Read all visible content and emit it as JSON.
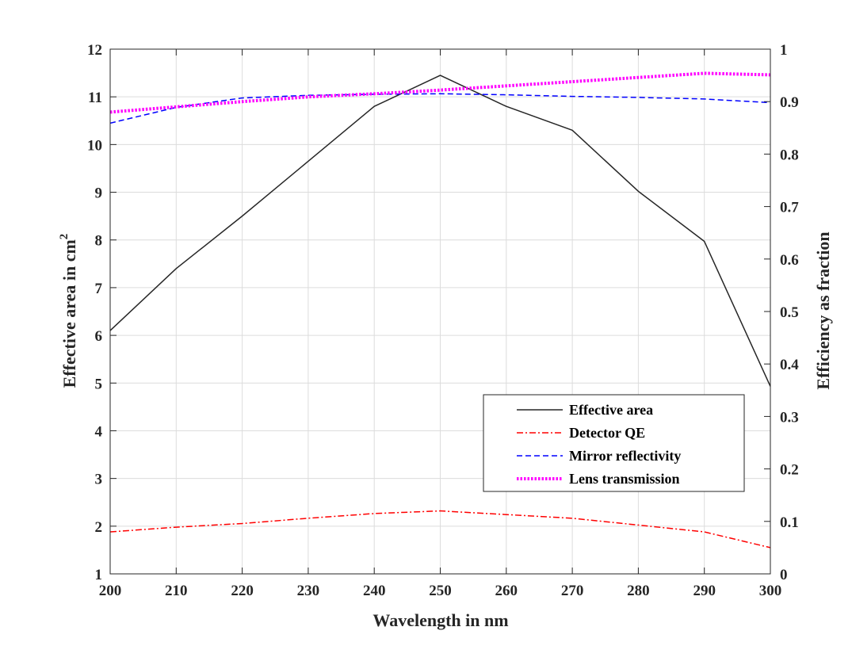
{
  "chart_data": {
    "type": "line",
    "xlabel": "Wavelength in nm",
    "ylabel_left": "Effective area in cm",
    "ylabel_left_sup": "2",
    "ylabel_right": "Efficiency as fraction",
    "xlim": [
      200,
      300
    ],
    "ylim_left": [
      1,
      12
    ],
    "ylim_right": [
      0,
      1
    ],
    "x_ticks": [
      "200",
      "210",
      "220",
      "230",
      "240",
      "250",
      "260",
      "270",
      "280",
      "290",
      "300"
    ],
    "y_left_ticks": [
      "1",
      "2",
      "3",
      "4",
      "5",
      "6",
      "7",
      "8",
      "9",
      "10",
      "11",
      "12"
    ],
    "y_right_ticks": [
      "0",
      "0.1",
      "0.2",
      "0.3",
      "0.4",
      "0.5",
      "0.6",
      "0.7",
      "0.8",
      "0.9",
      "1"
    ],
    "grid": true,
    "legend_position": "bottom-right",
    "series": [
      {
        "name": "Effective area",
        "axis": "left",
        "color": "#262626",
        "style": "solid",
        "x": [
          200,
          210,
          220,
          230,
          240,
          250,
          260,
          270,
          280,
          290,
          300
        ],
        "y": [
          6.1,
          7.4,
          8.5,
          9.65,
          10.8,
          11.45,
          10.8,
          10.3,
          9.02,
          7.97,
          4.93
        ]
      },
      {
        "name": "Detector QE",
        "axis": "right",
        "color": "#ff0000",
        "style": "dashdot",
        "x": [
          200,
          210,
          220,
          230,
          240,
          250,
          260,
          270,
          280,
          290,
          300
        ],
        "y": [
          0.08,
          0.089,
          0.096,
          0.106,
          0.115,
          0.12,
          0.113,
          0.106,
          0.093,
          0.08,
          0.05
        ]
      },
      {
        "name": "Mirror reflectivity",
        "axis": "right",
        "color": "#0000ff",
        "style": "dashed",
        "x": [
          200,
          210,
          220,
          230,
          240,
          250,
          260,
          270,
          280,
          290,
          300
        ],
        "y": [
          0.859,
          0.889,
          0.907,
          0.912,
          0.914,
          0.915,
          0.913,
          0.91,
          0.908,
          0.905,
          0.898
        ]
      },
      {
        "name": "Lens transmission",
        "axis": "right",
        "color": "#ff00ff",
        "style": "dotted",
        "x": [
          200,
          210,
          220,
          230,
          240,
          250,
          260,
          270,
          280,
          290,
          300
        ],
        "y": [
          0.88,
          0.89,
          0.9,
          0.909,
          0.915,
          0.922,
          0.93,
          0.938,
          0.946,
          0.954,
          0.951
        ]
      }
    ]
  }
}
